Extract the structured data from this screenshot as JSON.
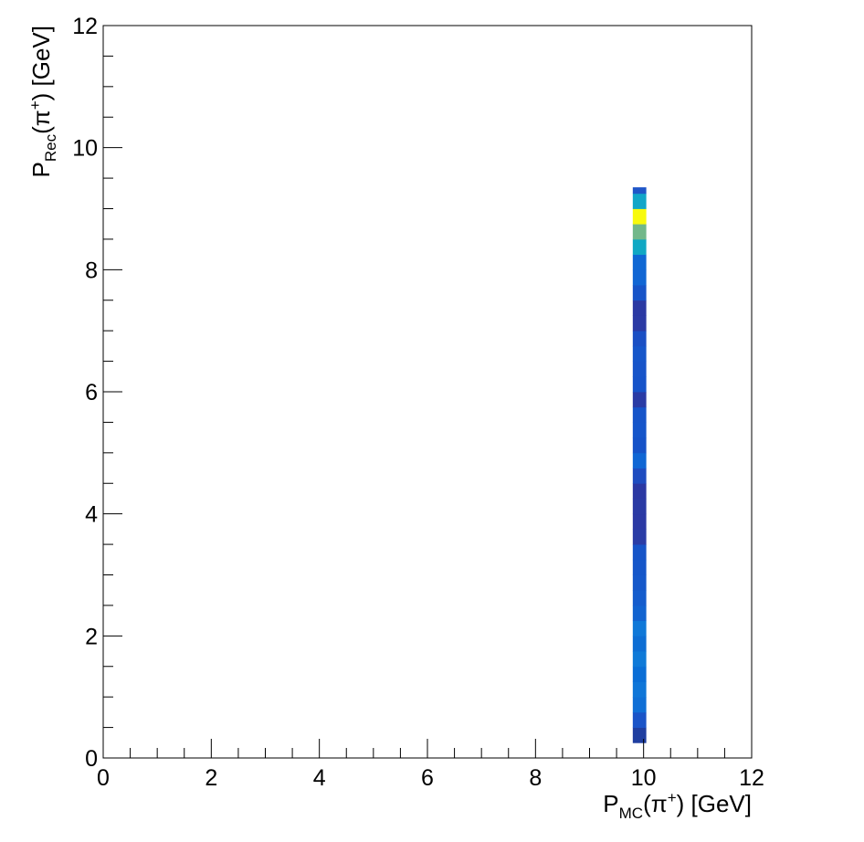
{
  "chart_data": {
    "type": "heatmap",
    "title": "",
    "xlabel": {
      "main": "P",
      "sub": "MC",
      "particle": "(π",
      "charge": "+",
      "rest": ") [GeV]"
    },
    "ylabel": {
      "main": "P",
      "sub": "Rec",
      "particle": "(π",
      "charge": "+",
      "rest": ") [GeV]"
    },
    "xlim": [
      0,
      12
    ],
    "ylim": [
      0,
      12
    ],
    "x_ticks": [
      "0",
      "2",
      "4",
      "6",
      "8",
      "10",
      "12"
    ],
    "y_ticks": [
      "0",
      "2",
      "4",
      "6",
      "8",
      "10",
      "12"
    ],
    "grid": false,
    "colormap": "kBird",
    "x_bin": [
      9.8,
      10.05
    ],
    "cells": [
      {
        "y0": 0.25,
        "y1": 0.5,
        "color": "#1f3ea0"
      },
      {
        "y0": 0.5,
        "y1": 0.75,
        "color": "#1a54c8"
      },
      {
        "y0": 0.75,
        "y1": 1.0,
        "color": "#0f6fd6"
      },
      {
        "y0": 1.0,
        "y1": 1.25,
        "color": "#0f76d8"
      },
      {
        "y0": 1.25,
        "y1": 1.5,
        "color": "#0a6ed6"
      },
      {
        "y0": 1.5,
        "y1": 1.75,
        "color": "#0f7ad8"
      },
      {
        "y0": 1.75,
        "y1": 2.0,
        "color": "#0d6ed4"
      },
      {
        "y0": 2.0,
        "y1": 2.25,
        "color": "#0f78d8"
      },
      {
        "y0": 2.25,
        "y1": 2.5,
        "color": "#1163d0"
      },
      {
        "y0": 2.5,
        "y1": 2.75,
        "color": "#145ccd"
      },
      {
        "y0": 2.75,
        "y1": 3.0,
        "color": "#1558ca"
      },
      {
        "y0": 3.0,
        "y1": 3.25,
        "color": "#1556c9"
      },
      {
        "y0": 3.25,
        "y1": 3.5,
        "color": "#1654c8"
      },
      {
        "y0": 3.5,
        "y1": 3.75,
        "color": "#2a3ca6"
      },
      {
        "y0": 3.75,
        "y1": 4.0,
        "color": "#2b39a4"
      },
      {
        "y0": 4.0,
        "y1": 4.25,
        "color": "#2a3aa4"
      },
      {
        "y0": 4.25,
        "y1": 4.5,
        "color": "#2b38a3"
      },
      {
        "y0": 4.5,
        "y1": 4.75,
        "color": "#1e4cc0"
      },
      {
        "y0": 4.75,
        "y1": 5.0,
        "color": "#0f66d4"
      },
      {
        "y0": 5.0,
        "y1": 5.25,
        "color": "#1552c8"
      },
      {
        "y0": 5.25,
        "y1": 5.5,
        "color": "#1555ca"
      },
      {
        "y0": 5.5,
        "y1": 5.75,
        "color": "#1654c9"
      },
      {
        "y0": 5.75,
        "y1": 6.0,
        "color": "#2a3ba5"
      },
      {
        "y0": 6.0,
        "y1": 6.25,
        "color": "#1653c9"
      },
      {
        "y0": 6.25,
        "y1": 6.5,
        "color": "#1754c9"
      },
      {
        "y0": 6.5,
        "y1": 6.75,
        "color": "#1656ca"
      },
      {
        "y0": 6.75,
        "y1": 7.0,
        "color": "#1a4fc4"
      },
      {
        "y0": 7.0,
        "y1": 7.25,
        "color": "#2b3aa4"
      },
      {
        "y0": 7.25,
        "y1": 7.5,
        "color": "#2b39a3"
      },
      {
        "y0": 7.5,
        "y1": 7.75,
        "color": "#1754c8"
      },
      {
        "y0": 7.75,
        "y1": 8.0,
        "color": "#1166d4"
      },
      {
        "y0": 8.0,
        "y1": 8.25,
        "color": "#0f68d4"
      },
      {
        "y0": 8.25,
        "y1": 8.5,
        "color": "#10a8c4"
      },
      {
        "y0": 8.5,
        "y1": 8.75,
        "color": "#72b88a"
      },
      {
        "y0": 8.75,
        "y1": 9.0,
        "color": "#f8fa0c"
      },
      {
        "y0": 9.0,
        "y1": 9.25,
        "color": "#12a6c8"
      },
      {
        "y0": 9.25,
        "y1": 9.35,
        "color": "#1f56c8"
      }
    ]
  }
}
